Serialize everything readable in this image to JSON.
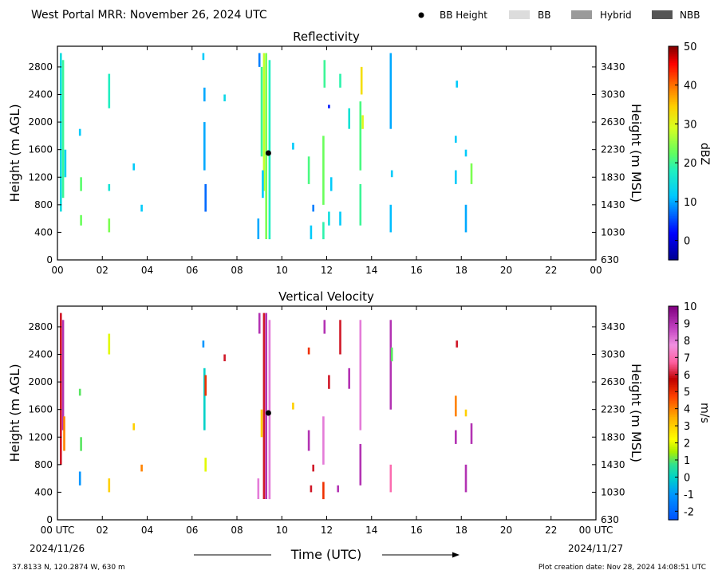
{
  "header": {
    "title": "West Portal MRR:  November 26, 2024 UTC",
    "legend": [
      {
        "label": "BB Height",
        "marker": "dot",
        "color": "#000000"
      },
      {
        "label": "BB",
        "marker": "box",
        "color": "#dcdcdc"
      },
      {
        "label": "Hybrid",
        "marker": "box",
        "color": "#9a9a9a"
      },
      {
        "label": "NBB",
        "marker": "box",
        "color": "#555555"
      }
    ]
  },
  "footer": {
    "location": "37.8133 N, 120.2874 W, 630 m",
    "created": "Plot creation date: Nov 28, 2024 14:08:51 UTC",
    "start_date": "2024/11/26",
    "end_date": "2024/11/27",
    "xlabel": "Time (UTC)"
  },
  "chart_data": [
    {
      "type": "heatmap",
      "title": "Reflectivity",
      "ylabel": "Height (m AGL)",
      "ylabel_right": "Height (m MSL)",
      "x_ticks": [
        "00",
        "02",
        "04",
        "06",
        "08",
        "10",
        "12",
        "14",
        "16",
        "18",
        "20",
        "22",
        "00"
      ],
      "xlim": [
        0,
        24
      ],
      "y_ticks": [
        0,
        400,
        800,
        1200,
        1600,
        2000,
        2400,
        2800
      ],
      "ylim": [
        0,
        3100
      ],
      "y_ticks_right": [
        "630",
        "1030",
        "1430",
        "1830",
        "2230",
        "2630",
        "3030",
        "3430"
      ],
      "colorbar": {
        "label": "dBZ",
        "min": -5,
        "max": 50,
        "ticks": [
          0,
          10,
          20,
          30,
          40,
          50
        ]
      },
      "bb_height": [
        {
          "t": 9.4,
          "h": 1550
        }
      ],
      "streaks": [
        {
          "t": 0.15,
          "h0": 700,
          "h1": 3000,
          "v": 15
        },
        {
          "t": 0.25,
          "h0": 900,
          "h1": 2900,
          "v": 20
        },
        {
          "t": 0.35,
          "h0": 1200,
          "h1": 1600,
          "v": 13
        },
        {
          "t": 1.05,
          "h0": 1000,
          "h1": 1200,
          "v": 22
        },
        {
          "t": 1.05,
          "h0": 500,
          "h1": 650,
          "v": 23
        },
        {
          "t": 1.0,
          "h0": 1800,
          "h1": 1900,
          "v": 12
        },
        {
          "t": 2.3,
          "h0": 2200,
          "h1": 2700,
          "v": 18
        },
        {
          "t": 2.3,
          "h0": 400,
          "h1": 600,
          "v": 24
        },
        {
          "t": 2.3,
          "h0": 1000,
          "h1": 1100,
          "v": 16
        },
        {
          "t": 3.4,
          "h0": 1300,
          "h1": 1400,
          "v": 12
        },
        {
          "t": 3.75,
          "h0": 700,
          "h1": 800,
          "v": 12
        },
        {
          "t": 6.55,
          "h0": 1300,
          "h1": 2000,
          "v": 10
        },
        {
          "t": 6.6,
          "h0": 700,
          "h1": 1100,
          "v": 7
        },
        {
          "t": 6.5,
          "h0": 2900,
          "h1": 3000,
          "v": 12
        },
        {
          "t": 6.55,
          "h0": 2300,
          "h1": 2500,
          "v": 10
        },
        {
          "t": 7.45,
          "h0": 2300,
          "h1": 2400,
          "v": 14
        },
        {
          "t": 8.95,
          "h0": 300,
          "h1": 600,
          "v": 10
        },
        {
          "t": 9.0,
          "h0": 2800,
          "h1": 3000,
          "v": 8
        },
        {
          "t": 9.1,
          "h0": 1500,
          "h1": 2800,
          "v": 20
        },
        {
          "t": 9.2,
          "h0": 1000,
          "h1": 3000,
          "v": 28
        },
        {
          "t": 9.3,
          "h0": 300,
          "h1": 3000,
          "v": 24
        },
        {
          "t": 9.45,
          "h0": 300,
          "h1": 2900,
          "v": 18
        },
        {
          "t": 9.15,
          "h0": 900,
          "h1": 1300,
          "v": 12
        },
        {
          "t": 10.5,
          "h0": 1600,
          "h1": 1700,
          "v": 12
        },
        {
          "t": 11.2,
          "h0": 1100,
          "h1": 1500,
          "v": 21
        },
        {
          "t": 11.3,
          "h0": 300,
          "h1": 500,
          "v": 12
        },
        {
          "t": 11.4,
          "h0": 700,
          "h1": 800,
          "v": 8
        },
        {
          "t": 11.85,
          "h0": 800,
          "h1": 1800,
          "v": 23
        },
        {
          "t": 11.85,
          "h0": 300,
          "h1": 550,
          "v": 19
        },
        {
          "t": 11.9,
          "h0": 2500,
          "h1": 2900,
          "v": 20
        },
        {
          "t": 12.1,
          "h0": 2200,
          "h1": 2250,
          "v": 3
        },
        {
          "t": 12.1,
          "h0": 500,
          "h1": 700,
          "v": 15
        },
        {
          "t": 12.2,
          "h0": 1000,
          "h1": 1200,
          "v": 12
        },
        {
          "t": 12.6,
          "h0": 2500,
          "h1": 2700,
          "v": 19
        },
        {
          "t": 12.6,
          "h0": 500,
          "h1": 700,
          "v": 12
        },
        {
          "t": 13.0,
          "h0": 1900,
          "h1": 2200,
          "v": 16
        },
        {
          "t": 13.5,
          "h0": 1300,
          "h1": 2300,
          "v": 21
        },
        {
          "t": 13.55,
          "h0": 2400,
          "h1": 2800,
          "v": 33
        },
        {
          "t": 13.6,
          "h0": 1900,
          "h1": 2100,
          "v": 30
        },
        {
          "t": 13.5,
          "h0": 500,
          "h1": 1100,
          "v": 20
        },
        {
          "t": 14.85,
          "h0": 1900,
          "h1": 3000,
          "v": 10
        },
        {
          "t": 14.85,
          "h0": 400,
          "h1": 800,
          "v": 11
        },
        {
          "t": 14.9,
          "h0": 1200,
          "h1": 1300,
          "v": 12
        },
        {
          "t": 17.75,
          "h0": 1100,
          "h1": 1300,
          "v": 12
        },
        {
          "t": 17.75,
          "h0": 1700,
          "h1": 1800,
          "v": 12
        },
        {
          "t": 17.8,
          "h0": 2500,
          "h1": 2600,
          "v": 12
        },
        {
          "t": 18.2,
          "h0": 1500,
          "h1": 1600,
          "v": 12
        },
        {
          "t": 18.2,
          "h0": 400,
          "h1": 800,
          "v": 10
        },
        {
          "t": 18.45,
          "h0": 1100,
          "h1": 1400,
          "v": 24
        }
      ]
    },
    {
      "type": "heatmap",
      "title": "Vertical Velocity",
      "ylabel": "Height (m AGL)",
      "ylabel_right": "Height (m MSL)",
      "x_ticks": [
        "00 UTC",
        "02",
        "04",
        "06",
        "08",
        "10",
        "12",
        "14",
        "16",
        "18",
        "20",
        "22",
        "00 UTC"
      ],
      "xlim": [
        0,
        24
      ],
      "y_ticks": [
        0,
        400,
        800,
        1200,
        1600,
        2000,
        2400,
        2800
      ],
      "ylim": [
        0,
        3100
      ],
      "y_ticks_right": [
        "630",
        "1030",
        "1430",
        "1830",
        "2230",
        "2630",
        "3030",
        "3430"
      ],
      "colorbar": {
        "label": "m/s",
        "min": -2.5,
        "max": 10,
        "ticks": [
          -2,
          -1,
          0,
          1,
          2,
          3,
          4,
          5,
          6,
          7,
          8,
          9,
          10
        ]
      },
      "bb_height": [
        {
          "t": 9.4,
          "h": 1550
        }
      ],
      "streaks": [
        {
          "t": 0.15,
          "h0": 800,
          "h1": 3000,
          "v": 6
        },
        {
          "t": 0.25,
          "h0": 1300,
          "h1": 2900,
          "v": 9
        },
        {
          "t": 0.3,
          "h0": 1000,
          "h1": 1500,
          "v": 4
        },
        {
          "t": 1.0,
          "h0": 500,
          "h1": 700,
          "v": -1
        },
        {
          "t": 1.05,
          "h0": 1000,
          "h1": 1200,
          "v": 1
        },
        {
          "t": 1.0,
          "h0": 1800,
          "h1": 1900,
          "v": 1
        },
        {
          "t": 2.3,
          "h0": 2400,
          "h1": 2700,
          "v": 2
        },
        {
          "t": 2.3,
          "h0": 400,
          "h1": 600,
          "v": 3
        },
        {
          "t": 3.4,
          "h0": 1300,
          "h1": 1400,
          "v": 3
        },
        {
          "t": 3.75,
          "h0": 700,
          "h1": 800,
          "v": 4
        },
        {
          "t": 6.55,
          "h0": 1300,
          "h1": 2200,
          "v": 0
        },
        {
          "t": 6.6,
          "h0": 700,
          "h1": 900,
          "v": 2
        },
        {
          "t": 6.5,
          "h0": 2500,
          "h1": 2600,
          "v": -1
        },
        {
          "t": 6.6,
          "h0": 1800,
          "h1": 2100,
          "v": 5
        },
        {
          "t": 7.45,
          "h0": 2300,
          "h1": 2400,
          "v": 6
        },
        {
          "t": 8.95,
          "h0": 300,
          "h1": 600,
          "v": 8
        },
        {
          "t": 9.0,
          "h0": 2700,
          "h1": 3000,
          "v": 9
        },
        {
          "t": 9.1,
          "h0": 1200,
          "h1": 1600,
          "v": 3
        },
        {
          "t": 9.2,
          "h0": 300,
          "h1": 3000,
          "v": 6
        },
        {
          "t": 9.3,
          "h0": 300,
          "h1": 3000,
          "v": 9
        },
        {
          "t": 9.45,
          "h0": 300,
          "h1": 2900,
          "v": 8
        },
        {
          "t": 10.5,
          "h0": 1600,
          "h1": 1700,
          "v": 3
        },
        {
          "t": 11.2,
          "h0": 1000,
          "h1": 1300,
          "v": 9
        },
        {
          "t": 11.3,
          "h0": 400,
          "h1": 500,
          "v": 6
        },
        {
          "t": 11.4,
          "h0": 700,
          "h1": 800,
          "v": 6
        },
        {
          "t": 11.85,
          "h0": 800,
          "h1": 1500,
          "v": 8
        },
        {
          "t": 11.85,
          "h0": 300,
          "h1": 550,
          "v": 5
        },
        {
          "t": 11.9,
          "h0": 2700,
          "h1": 2900,
          "v": 9
        },
        {
          "t": 11.2,
          "h0": 2400,
          "h1": 2500,
          "v": 5
        },
        {
          "t": 12.1,
          "h0": 1900,
          "h1": 2100,
          "v": 6
        },
        {
          "t": 12.6,
          "h0": 2400,
          "h1": 2900,
          "v": 6
        },
        {
          "t": 12.5,
          "h0": 400,
          "h1": 500,
          "v": 9
        },
        {
          "t": 13.0,
          "h0": 1900,
          "h1": 2200,
          "v": 9
        },
        {
          "t": 13.5,
          "h0": 1300,
          "h1": 2900,
          "v": 8
        },
        {
          "t": 13.5,
          "h0": 500,
          "h1": 1100,
          "v": 9
        },
        {
          "t": 14.85,
          "h0": 1600,
          "h1": 2900,
          "v": 9
        },
        {
          "t": 14.85,
          "h0": 400,
          "h1": 800,
          "v": 7
        },
        {
          "t": 14.9,
          "h0": 2300,
          "h1": 2500,
          "v": 1
        },
        {
          "t": 17.75,
          "h0": 1100,
          "h1": 1300,
          "v": 9
        },
        {
          "t": 17.75,
          "h0": 1500,
          "h1": 1800,
          "v": 4
        },
        {
          "t": 17.8,
          "h0": 2500,
          "h1": 2600,
          "v": 6
        },
        {
          "t": 18.2,
          "h0": 1500,
          "h1": 1600,
          "v": 3
        },
        {
          "t": 18.2,
          "h0": 400,
          "h1": 800,
          "v": 9
        },
        {
          "t": 18.45,
          "h0": 1100,
          "h1": 1400,
          "v": 9
        }
      ]
    }
  ]
}
